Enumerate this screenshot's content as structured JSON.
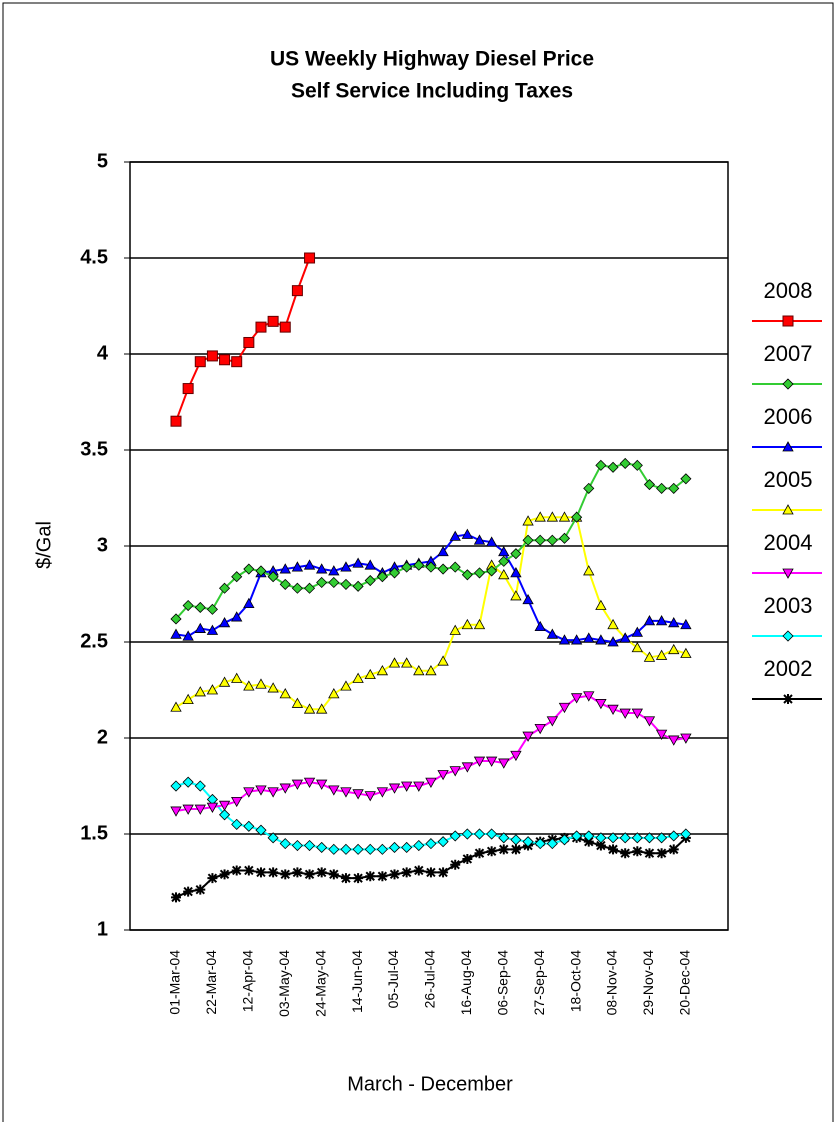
{
  "chart_data": {
    "type": "line",
    "title": "US Weekly Highway Diesel Price",
    "subtitle": "Self Service Including Taxes",
    "y_label": "$/Gal",
    "x_label": "March - December",
    "categories": [
      "01-Mar-04",
      null,
      null,
      "22-Mar-04",
      null,
      null,
      "12-Apr-04",
      null,
      null,
      "03-May-04",
      null,
      null,
      "24-May-04",
      null,
      null,
      "14-Jun-04",
      null,
      null,
      "05-Jul-04",
      null,
      null,
      "26-Jul-04",
      null,
      null,
      "16-Aug-04",
      null,
      null,
      "06-Sep-04",
      null,
      null,
      "27-Sep-04",
      null,
      null,
      "18-Oct-04",
      null,
      null,
      "08-Nov-04",
      null,
      null,
      "29-Nov-04",
      null,
      null,
      "20-Dec-04",
      null
    ],
    "ylim": [
      1,
      5
    ],
    "yticks": [
      1,
      1.5,
      2,
      2.5,
      3,
      3.5,
      4,
      4.5,
      5
    ],
    "grid": true,
    "legend": "right",
    "series": [
      {
        "name": "2008",
        "color": "#ff0000",
        "marker": "square",
        "values": [
          3.65,
          3.82,
          3.96,
          3.99,
          3.97,
          3.96,
          4.06,
          4.14,
          4.17,
          4.14,
          4.33,
          4.5,
          null,
          null,
          null,
          null,
          null,
          null,
          null,
          null,
          null,
          null,
          null,
          null,
          null,
          null,
          null,
          null,
          null,
          null,
          null,
          null,
          null,
          null,
          null,
          null,
          null,
          null,
          null,
          null,
          null,
          null,
          null,
          null
        ]
      },
      {
        "name": "2007",
        "color": "#33cc33",
        "marker": "diamond",
        "values": [
          2.62,
          2.69,
          2.68,
          2.67,
          2.78,
          2.84,
          2.88,
          2.87,
          2.84,
          2.8,
          2.78,
          2.78,
          2.81,
          2.81,
          2.8,
          2.79,
          2.82,
          2.84,
          2.86,
          2.89,
          2.9,
          2.89,
          2.88,
          2.89,
          2.85,
          2.86,
          2.87,
          2.92,
          2.96,
          3.03,
          3.03,
          3.03,
          3.04,
          3.15,
          3.3,
          3.42,
          3.41,
          3.43,
          3.42,
          3.32,
          3.3,
          3.3,
          3.35,
          null
        ]
      },
      {
        "name": "2006",
        "color": "#0000ff",
        "marker": "triangle-up",
        "values": [
          2.54,
          2.53,
          2.57,
          2.56,
          2.6,
          2.63,
          2.7,
          2.86,
          2.87,
          2.88,
          2.89,
          2.9,
          2.88,
          2.87,
          2.89,
          2.91,
          2.9,
          2.86,
          2.89,
          2.9,
          2.91,
          2.92,
          2.97,
          3.05,
          3.06,
          3.03,
          3.02,
          2.97,
          2.86,
          2.72,
          2.58,
          2.54,
          2.51,
          2.51,
          2.52,
          2.51,
          2.5,
          2.52,
          2.55,
          2.61,
          2.61,
          2.6,
          2.59,
          null
        ]
      },
      {
        "name": "2005",
        "color": "#ffff00",
        "marker": "triangle-up",
        "values": [
          2.16,
          2.2,
          2.24,
          2.25,
          2.29,
          2.31,
          2.27,
          2.28,
          2.26,
          2.23,
          2.18,
          2.15,
          2.15,
          2.23,
          2.27,
          2.31,
          2.33,
          2.35,
          2.39,
          2.39,
          2.35,
          2.35,
          2.4,
          2.56,
          2.59,
          2.59,
          2.9,
          2.85,
          2.74,
          3.13,
          3.15,
          3.15,
          3.15,
          3.15,
          2.87,
          2.69,
          2.59,
          2.52,
          2.47,
          2.42,
          2.43,
          2.46,
          2.44,
          null
        ]
      },
      {
        "name": "2004",
        "color": "#ff00ff",
        "marker": "triangle-down",
        "values": [
          1.62,
          1.63,
          1.63,
          1.64,
          1.65,
          1.67,
          1.72,
          1.73,
          1.72,
          1.74,
          1.76,
          1.77,
          1.76,
          1.73,
          1.72,
          1.71,
          1.7,
          1.72,
          1.74,
          1.75,
          1.75,
          1.77,
          1.81,
          1.83,
          1.85,
          1.88,
          1.88,
          1.87,
          1.91,
          2.01,
          2.05,
          2.09,
          2.16,
          2.21,
          2.22,
          2.18,
          2.15,
          2.13,
          2.13,
          2.09,
          2.02,
          1.99,
          2,
          null
        ]
      },
      {
        "name": "2003",
        "color": "#00ffff",
        "marker": "diamond",
        "values": [
          1.75,
          1.77,
          1.75,
          1.68,
          1.6,
          1.55,
          1.54,
          1.52,
          1.48,
          1.45,
          1.44,
          1.44,
          1.43,
          1.42,
          1.42,
          1.42,
          1.42,
          1.42,
          1.43,
          1.43,
          1.44,
          1.45,
          1.46,
          1.49,
          1.5,
          1.5,
          1.5,
          1.48,
          1.47,
          1.46,
          1.45,
          1.45,
          1.47,
          1.49,
          1.49,
          1.48,
          1.48,
          1.48,
          1.48,
          1.48,
          1.48,
          1.49,
          1.5,
          null
        ]
      },
      {
        "name": "2002",
        "color": "#000000",
        "marker": "star",
        "values": [
          1.17,
          1.2,
          1.21,
          1.27,
          1.29,
          1.31,
          1.31,
          1.3,
          1.3,
          1.29,
          1.3,
          1.29,
          1.3,
          1.29,
          1.27,
          1.27,
          1.28,
          1.28,
          1.29,
          1.3,
          1.31,
          1.3,
          1.3,
          1.34,
          1.37,
          1.4,
          1.41,
          1.42,
          1.42,
          1.44,
          1.46,
          1.47,
          1.48,
          1.48,
          1.46,
          1.44,
          1.42,
          1.4,
          1.41,
          1.4,
          1.4,
          1.42,
          1.48,
          null
        ]
      }
    ]
  }
}
